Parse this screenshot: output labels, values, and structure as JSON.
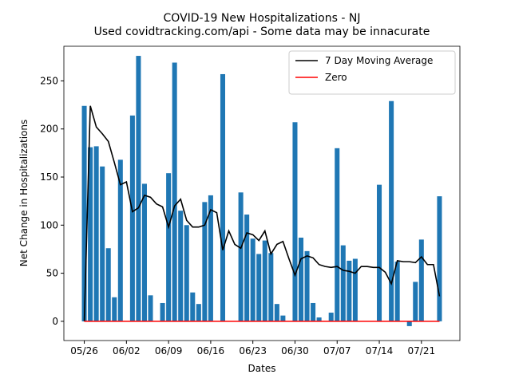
{
  "chart_data": {
    "type": "bar",
    "title": "COVID-19 New Hospitalizations - NJ",
    "subtitle": "Used covidtracking.com/api - Some data may be innacurate",
    "xlabel": "Dates",
    "ylabel": "Net Change in Hospitalizations",
    "categories": [
      "05/26",
      "05/27",
      "05/28",
      "05/29",
      "05/30",
      "05/31",
      "06/01",
      "06/02",
      "06/03",
      "06/04",
      "06/05",
      "06/06",
      "06/07",
      "06/08",
      "06/09",
      "06/10",
      "06/11",
      "06/12",
      "06/13",
      "06/14",
      "06/15",
      "06/16",
      "06/17",
      "06/18",
      "06/19",
      "06/20",
      "06/21",
      "06/22",
      "06/23",
      "06/24",
      "06/25",
      "06/26",
      "06/27",
      "06/28",
      "06/29",
      "06/30",
      "07/01",
      "07/02",
      "07/03",
      "07/04",
      "07/05",
      "07/06",
      "07/07",
      "07/08",
      "07/09",
      "07/10",
      "07/11",
      "07/12",
      "07/13",
      "07/14",
      "07/15",
      "07/16",
      "07/17",
      "07/18",
      "07/19",
      "07/20",
      "07/21",
      "07/22",
      "07/23",
      "07/24"
    ],
    "xticks": [
      "05/26",
      "06/02",
      "06/09",
      "06/16",
      "06/23",
      "06/30",
      "07/07",
      "07/14",
      "07/21"
    ],
    "series": [
      {
        "type": "bar",
        "color": "#1f77b4",
        "values": [
          224,
          181,
          182,
          161,
          76,
          25,
          168,
          0,
          214,
          276,
          143,
          27,
          0,
          19,
          154,
          269,
          115,
          100,
          30,
          18,
          124,
          131,
          0,
          257,
          0,
          0,
          134,
          111,
          86,
          70,
          84,
          71,
          18,
          6,
          0,
          207,
          87,
          73,
          19,
          4,
          0,
          9,
          180,
          79,
          63,
          65,
          0,
          0,
          0,
          142,
          0,
          229,
          62,
          0,
          -5,
          41,
          85,
          0,
          0,
          130
        ]
      },
      {
        "type": "line",
        "name": "7 Day Moving Average",
        "color": "#000000",
        "values": [
          0,
          224,
          202,
          195,
          187,
          165,
          142,
          145,
          114,
          118,
          131,
          129,
          122,
          119,
          98,
          120,
          127,
          105,
          98,
          98,
          100,
          116,
          113,
          74,
          94,
          80,
          76,
          92,
          90,
          84,
          94,
          70,
          80,
          83,
          65,
          48,
          65,
          68,
          66,
          59,
          57,
          56,
          57,
          53,
          52,
          50,
          57,
          57,
          56,
          56,
          51,
          39,
          63,
          62,
          62,
          61,
          67,
          59,
          59,
          26
        ]
      },
      {
        "type": "line",
        "name": "Zero",
        "color": "#ff0000",
        "values": [
          0,
          0,
          0,
          0,
          0,
          0,
          0,
          0,
          0,
          0,
          0,
          0,
          0,
          0,
          0,
          0,
          0,
          0,
          0,
          0,
          0,
          0,
          0,
          0,
          0,
          0,
          0,
          0,
          0,
          0,
          0,
          0,
          0,
          0,
          0,
          0,
          0,
          0,
          0,
          0,
          0,
          0,
          0,
          0,
          0,
          0,
          0,
          0,
          0,
          0,
          0,
          0,
          0,
          0,
          0,
          0,
          0,
          0,
          0,
          0
        ]
      }
    ],
    "ylim": [
      -20,
      286
    ],
    "yticks": [
      0,
      50,
      100,
      150,
      200,
      250
    ],
    "legend": "upper right"
  }
}
